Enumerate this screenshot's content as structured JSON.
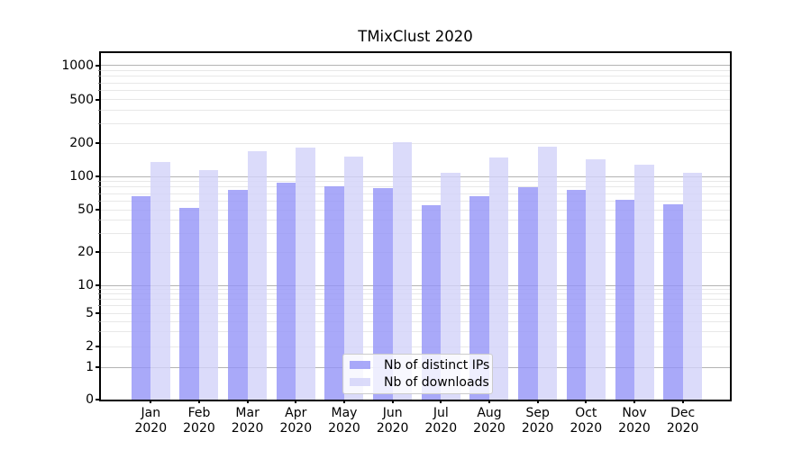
{
  "title": "TMixClust 2020",
  "chart_data": {
    "type": "bar",
    "title": "TMixClust 2020",
    "categories": [
      "Jan 2020",
      "Feb 2020",
      "Mar 2020",
      "Apr 2020",
      "May 2020",
      "Jun 2020",
      "Jul 2020",
      "Aug 2020",
      "Sep 2020",
      "Oct 2020",
      "Nov 2020",
      "Dec 2020"
    ],
    "series": [
      {
        "name": "Nb of distinct IPs",
        "color": "#9494f8",
        "alpha": 0.8,
        "values": [
          66,
          52,
          76,
          87,
          81,
          78,
          55,
          66,
          80,
          75,
          61,
          56
        ]
      },
      {
        "name": "Nb of downloads",
        "color": "#d2d2f9",
        "alpha": 0.8,
        "values": [
          135,
          113,
          168,
          181,
          151,
          205,
          107,
          147,
          185,
          143,
          128,
          108
        ]
      }
    ],
    "xlabel": "",
    "ylabel": "",
    "yscale": "symlog",
    "y_tick_labels": [
      "0",
      "1",
      "2",
      "5",
      "10",
      "20",
      "50",
      "100",
      "200",
      "500",
      "1000"
    ],
    "y_tick_values": [
      0,
      1,
      2,
      5,
      10,
      20,
      50,
      100,
      200,
      500,
      1000
    ],
    "ylim": [
      0,
      1280
    ],
    "grid": "horizontal",
    "legend_position": "lower center inside"
  }
}
